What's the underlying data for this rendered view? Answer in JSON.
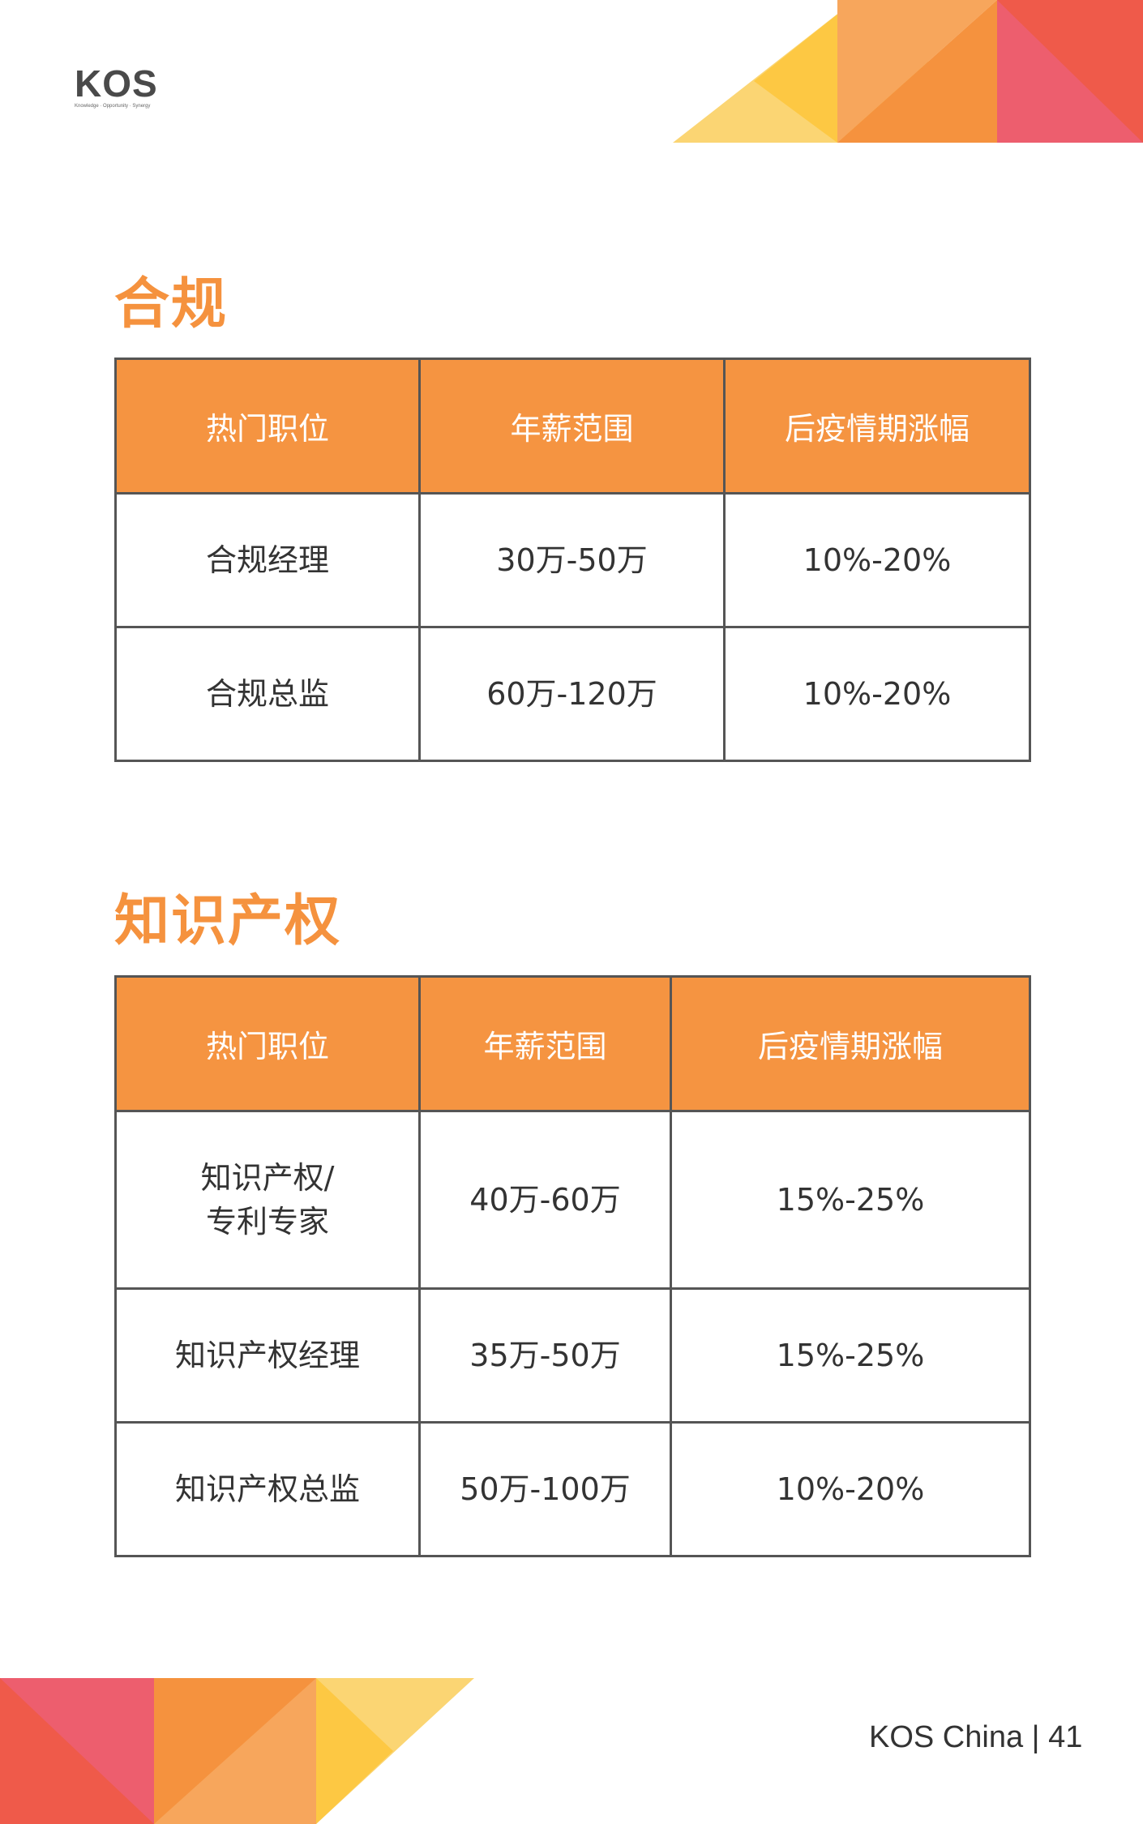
{
  "brand": {
    "logo_letters": [
      "K",
      "O",
      "S"
    ],
    "tagline": "Knowledge · Opportunity · Synergy",
    "colors": {
      "orange": "#f59441",
      "red": "#ef5a4a",
      "pink": "#ed5e6e",
      "yellow": "#fdc843",
      "light_orange": "#f7a65c",
      "light_yellow": "#fbd573"
    }
  },
  "sections": [
    {
      "title": "合规",
      "headers": [
        "热门职位",
        "年薪范围",
        "后疫情期涨幅"
      ],
      "rows": [
        [
          "合规经理",
          "30万-50万",
          "10%-20%"
        ],
        [
          "合规总监",
          "60万-120万",
          "10%-20%"
        ]
      ]
    },
    {
      "title": "知识产权",
      "headers": [
        "热门职位",
        "年薪范围",
        "后疫情期涨幅"
      ],
      "rows": [
        [
          [
            "知识产权/",
            "专利专家"
          ],
          "40万-60万",
          "15%-25%"
        ],
        [
          "知识产权经理",
          "35万-50万",
          "15%-25%"
        ],
        [
          "知识产权总监",
          "50万-100万",
          "10%-20%"
        ]
      ]
    }
  ],
  "footer": {
    "text": "KOS China | 41"
  }
}
